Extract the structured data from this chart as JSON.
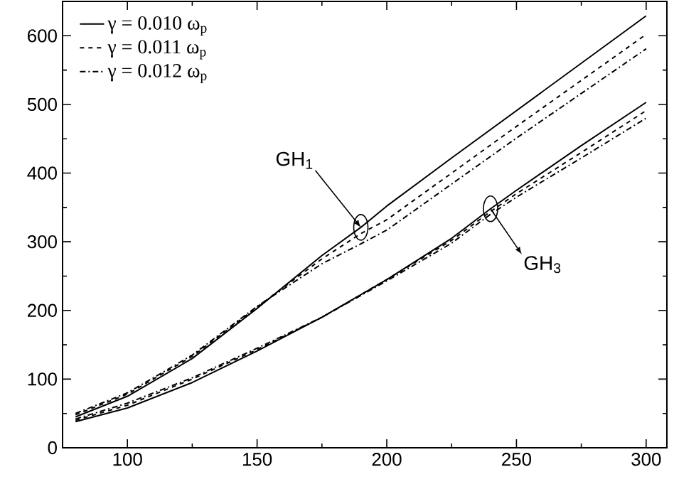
{
  "chart_data": {
    "type": "line",
    "xlim": [
      75,
      308
    ],
    "ylim": [
      0,
      650
    ],
    "xticks": [
      100,
      150,
      200,
      250,
      300
    ],
    "yticks": [
      0,
      100,
      200,
      300,
      400,
      500,
      600
    ],
    "grid": false,
    "legend": "top left",
    "marker": "none",
    "series": [
      {
        "name": "γ = 0.010 ω$_{p}$",
        "color": "#000000",
        "line_style": "solid",
        "x": [
          80,
          100,
          125,
          150,
          175,
          190,
          200,
          225,
          250,
          275,
          300
        ],
        "values": [
          45,
          75,
          130,
          203,
          280,
          321,
          352,
          422,
          491,
          560,
          629
        ]
      },
      {
        "name": "γ = 0.011 ω$_{p}$",
        "color": "#000000",
        "line_style": "dashed",
        "x": [
          80,
          100,
          125,
          150,
          175,
          190,
          200,
          225,
          250,
          275,
          300
        ],
        "values": [
          48,
          78,
          133,
          205,
          275,
          312,
          332,
          400,
          468,
          535,
          602
        ]
      },
      {
        "name": "γ = 0.012 ω$_{p}$",
        "color": "#000000",
        "line_style": "dashdot",
        "x": [
          80,
          100,
          125,
          150,
          175,
          190,
          200,
          225,
          250,
          275,
          300
        ],
        "values": [
          50,
          80,
          135,
          206,
          268,
          297,
          317,
          384,
          451,
          516,
          581
        ]
      },
      {
        "color": "#000000",
        "line_style": "solid",
        "x": [
          80,
          100,
          125,
          150,
          175,
          200,
          225,
          240,
          250,
          275,
          300
        ],
        "values": [
          38,
          58,
          95,
          141,
          190,
          245,
          305,
          348,
          375,
          440,
          503
        ]
      },
      {
        "color": "#000000",
        "line_style": "dashed",
        "x": [
          80,
          100,
          125,
          150,
          175,
          200,
          225,
          240,
          250,
          275,
          300
        ],
        "values": [
          40,
          62,
          100,
          143,
          190,
          245,
          302,
          344,
          370,
          430,
          491
        ]
      },
      {
        "color": "#000000",
        "line_style": "dashdot",
        "x": [
          80,
          100,
          125,
          150,
          175,
          200,
          225,
          240,
          250,
          275,
          300
        ],
        "values": [
          42,
          65,
          102,
          145,
          190,
          243,
          298,
          340,
          365,
          422,
          480
        ]
      }
    ],
    "annotations": [
      {
        "text": "GH$_{1}$",
        "x": 190,
        "y": 321
      },
      {
        "text": "GH$_{3}$",
        "x": 240,
        "y": 348
      }
    ]
  }
}
